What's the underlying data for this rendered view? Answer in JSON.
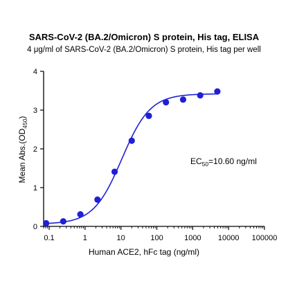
{
  "chart_data": {
    "type": "scatter",
    "title": "SARS-CoV-2 (BA.2/Omicron) S protein, His tag, ELISA",
    "subtitle": "4 μg/ml of SARS-CoV-2 (BA.2/Omicron) S protein, His tag per well",
    "xlabel": "Human ACE2, hFc tag (ng/ml)",
    "ylabel_main": "Mean Abs.(OD",
    "ylabel_sub": "450",
    "ylabel_end": ")",
    "xscale": "log",
    "xlim": [
      0.07,
      100000
    ],
    "ylim": [
      0,
      4
    ],
    "xticks": [
      0.1,
      1,
      10,
      100,
      1000,
      10000,
      100000
    ],
    "xtick_labels": [
      "0.1",
      "1",
      "10",
      "100",
      "1000",
      "10000",
      "100000"
    ],
    "yticks": [
      0,
      1,
      2,
      3,
      4
    ],
    "ytick_labels": [
      "0",
      "1",
      "2",
      "3",
      "4"
    ],
    "grid": false,
    "legend": "none",
    "series": [
      {
        "color": "#1f1fd6",
        "x": [
          0.0823,
          0.247,
          0.741,
          2.22,
          6.67,
          20,
          60,
          180,
          540,
          1620,
          4860
        ],
        "y": [
          0.08,
          0.13,
          0.31,
          0.69,
          1.41,
          2.21,
          2.85,
          3.2,
          3.27,
          3.38,
          3.48
        ]
      }
    ],
    "fit": {
      "model": "4PL",
      "bottom": 0.06,
      "top": 3.42,
      "ec50": 10.6,
      "hill": 1.1,
      "color": "#1f1fd6"
    },
    "annotation": {
      "prefix": "EC",
      "sub": "50",
      "suffix": "=10.60 ng/ml"
    }
  }
}
